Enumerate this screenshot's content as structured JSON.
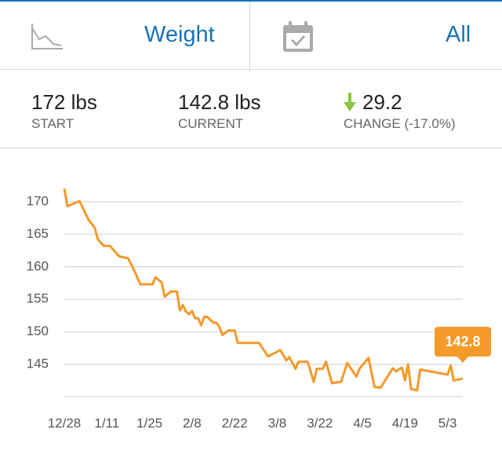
{
  "header": {
    "metric": "Weight",
    "range": "All"
  },
  "stats": [
    {
      "value": "172 lbs",
      "label": "START"
    },
    {
      "value": "142.8 lbs",
      "label": "CURRENT"
    },
    {
      "value": "29.2",
      "label": "CHANGE (-17.0%)"
    }
  ],
  "chart_data": {
    "type": "line",
    "x": [
      0,
      1,
      5,
      8,
      10,
      11,
      13,
      15,
      18,
      21,
      23,
      25,
      29,
      30,
      32,
      33,
      35,
      37,
      38,
      39,
      40,
      41,
      42,
      43,
      44,
      45,
      46,
      47,
      49,
      50,
      51,
      52,
      54,
      56,
      57,
      64,
      67,
      71,
      73,
      74,
      76,
      77,
      80,
      82,
      83,
      85,
      86,
      88,
      91,
      93,
      96,
      97,
      100,
      102,
      104,
      108,
      109,
      111,
      112,
      113,
      114,
      116,
      117,
      126,
      127,
      128,
      131
    ],
    "values": [
      172,
      169.3,
      170.1,
      167.2,
      166,
      164.2,
      163.2,
      163.2,
      161.6,
      161.3,
      159.4,
      157.3,
      157.3,
      158.4,
      157.6,
      155.4,
      156.2,
      156.2,
      153.3,
      154.1,
      153.1,
      152.7,
      153.2,
      152.1,
      152.1,
      151,
      152.3,
      152.3,
      151.4,
      151.4,
      150.7,
      149.5,
      150.2,
      150.2,
      148.3,
      148.3,
      146.2,
      147.2,
      145.6,
      146.1,
      144.3,
      145.4,
      145.4,
      142.3,
      144.3,
      144.3,
      145.4,
      142.1,
      142.3,
      145.2,
      143.1,
      144.3,
      146,
      141.5,
      141.4,
      144.4,
      143.9,
      144.5,
      142.5,
      145,
      141.2,
      141,
      144.2,
      143.4,
      144.8,
      142.5,
      142.8
    ],
    "color": "#f39a2b",
    "xlim": [
      0,
      131
    ],
    "ylim": [
      140,
      172
    ],
    "xticks": [
      {
        "value": 0,
        "label": "12/28"
      },
      {
        "value": 14,
        "label": "1/11"
      },
      {
        "value": 28,
        "label": "1/25"
      },
      {
        "value": 42,
        "label": "2/8"
      },
      {
        "value": 56,
        "label": "2/22"
      },
      {
        "value": 70,
        "label": "3/8"
      },
      {
        "value": 84,
        "label": "3/22"
      },
      {
        "value": 98,
        "label": "4/5"
      },
      {
        "value": 112,
        "label": "4/19"
      },
      {
        "value": 126,
        "label": "5/3"
      }
    ],
    "yticks": [
      145,
      150,
      155,
      160,
      165,
      170
    ],
    "grid": true
  }
}
